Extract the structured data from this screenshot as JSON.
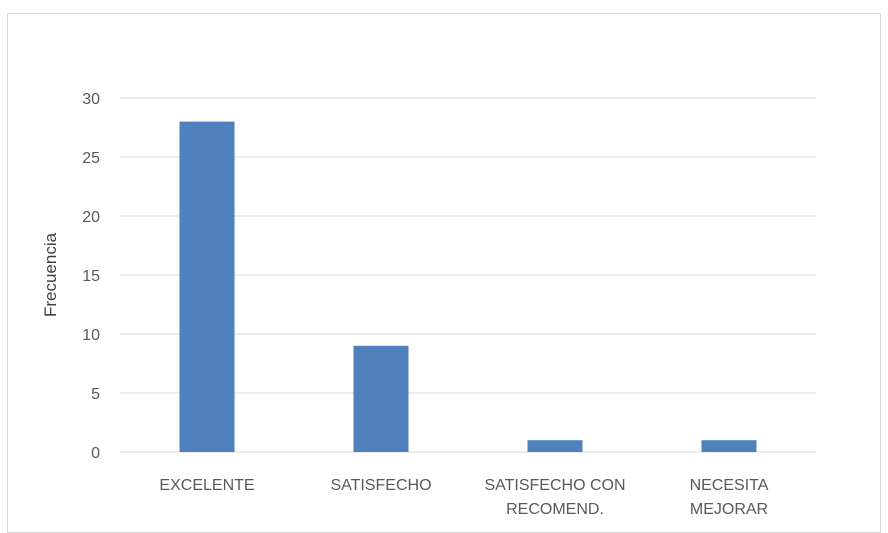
{
  "chart_data": {
    "type": "bar",
    "categories": [
      [
        "EXCELENTE"
      ],
      [
        "SATISFECHO"
      ],
      [
        "SATISFECHO CON",
        "RECOMEND."
      ],
      [
        "NECESITA",
        "MEJORAR"
      ]
    ],
    "values": [
      28,
      9,
      1,
      1
    ],
    "title": "",
    "xlabel": "",
    "ylabel": "Frecuencia",
    "ylim": [
      0,
      30
    ],
    "yticks": [
      0,
      5,
      10,
      15,
      20,
      25,
      30
    ],
    "grid": true,
    "legend": "none",
    "bar_color": "#4f81bd",
    "grid_color": "#d9d9d9"
  }
}
